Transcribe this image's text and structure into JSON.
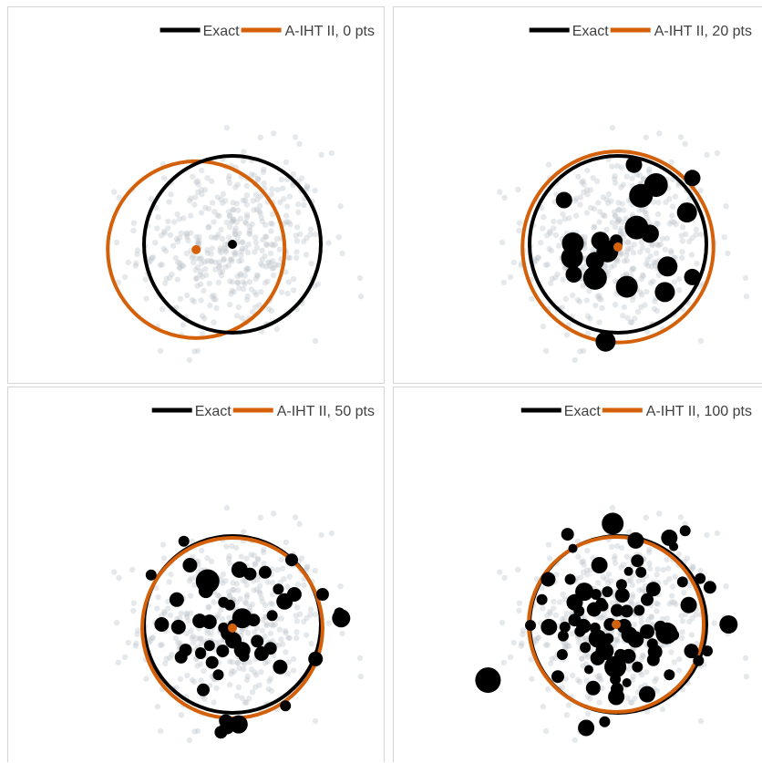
{
  "chart_data": [
    {
      "type": "scatter",
      "legend": [
        "Exact",
        "A-IHT II, 0 pts"
      ],
      "legend_position": "top-right",
      "colors": {
        "exact": "#000000",
        "approx": "#d4600a",
        "cloud": "#b8c0c6"
      },
      "exact_circle": {
        "center": [
          0.0,
          0.0
        ],
        "radius": 1.0
      },
      "approx_circle": {
        "center": [
          -0.41,
          -0.06
        ],
        "radius": 1.0
      },
      "weighted_points": []
    },
    {
      "type": "scatter",
      "legend": [
        "Exact",
        "A-IHT II, 20 pts"
      ],
      "legend_position": "top-right",
      "colors": {
        "exact": "#000000",
        "approx": "#d4600a",
        "cloud": "#b8c0c6"
      },
      "exact_circle": {
        "center": [
          0.0,
          0.0
        ],
        "radius": 1.0
      },
      "approx_circle": {
        "center": [
          0.0,
          -0.03
        ],
        "radius": 1.08
      },
      "weighted_points": [
        [
          0.18,
          0.9,
          9
        ],
        [
          0.84,
          0.75,
          9
        ],
        [
          0.43,
          0.67,
          13
        ],
        [
          0.26,
          0.55,
          13
        ],
        [
          -0.61,
          0.5,
          9
        ],
        [
          0.78,
          0.36,
          11
        ],
        [
          0.21,
          0.19,
          13
        ],
        [
          0.36,
          0.12,
          10
        ],
        [
          -0.51,
          0.01,
          12
        ],
        [
          -0.2,
          0.04,
          10
        ],
        [
          -0.02,
          0.04,
          7
        ],
        [
          -0.52,
          -0.15,
          12
        ],
        [
          -0.12,
          -0.08,
          12
        ],
        [
          -0.26,
          -0.19,
          10
        ],
        [
          0.56,
          -0.25,
          11
        ],
        [
          -0.5,
          -0.34,
          9
        ],
        [
          -0.26,
          -0.38,
          13
        ],
        [
          0.84,
          -0.37,
          9
        ],
        [
          0.1,
          -0.48,
          12
        ],
        [
          0.53,
          -0.54,
          11
        ],
        [
          -0.14,
          -1.1,
          11
        ]
      ]
    },
    {
      "type": "scatter",
      "legend": [
        "Exact",
        "A-IHT II, 50 pts"
      ],
      "legend_position": "top-right",
      "colors": {
        "exact": "#000000",
        "approx": "#d4600a",
        "cloud": "#b8c0c6"
      },
      "exact_circle": {
        "center": [
          0.0,
          0.0
        ],
        "radius": 1.0
      },
      "approx_circle": {
        "center": [
          0.0,
          -0.04
        ],
        "radius": 1.02
      },
      "weighted_points": [
        [
          -0.55,
          0.94,
          6
        ],
        [
          0.67,
          0.73,
          7
        ],
        [
          0.08,
          0.62,
          9
        ],
        [
          -0.48,
          0.67,
          8
        ],
        [
          0.2,
          0.57,
          7
        ],
        [
          -0.92,
          0.56,
          6
        ],
        [
          -0.28,
          0.49,
          13
        ],
        [
          0.37,
          0.59,
          7
        ],
        [
          0.7,
          0.34,
          8
        ],
        [
          -0.63,
          0.28,
          8
        ],
        [
          -0.3,
          0.38,
          8
        ],
        [
          -0.03,
          0.22,
          6
        ],
        [
          0.52,
          0.4,
          6
        ],
        [
          1.02,
          0.34,
          7
        ],
        [
          0.59,
          0.26,
          9
        ],
        [
          -0.1,
          0.25,
          6
        ],
        [
          0.11,
          0.07,
          11
        ],
        [
          -0.37,
          0.04,
          8
        ],
        [
          -0.8,
          0.0,
          8
        ],
        [
          -0.26,
          0.03,
          8
        ],
        [
          0.24,
          0.05,
          7
        ],
        [
          0.45,
          0.1,
          6
        ],
        [
          1.23,
          0.07,
          10
        ],
        [
          1.21,
          0.13,
          6
        ],
        [
          -0.61,
          -0.03,
          8
        ],
        [
          -0.1,
          -0.04,
          6
        ],
        [
          -0.05,
          -0.1,
          8
        ],
        [
          0.01,
          -0.18,
          9
        ],
        [
          -0.26,
          -0.24,
          6
        ],
        [
          -0.53,
          -0.29,
          7
        ],
        [
          0.11,
          -0.29,
          9
        ],
        [
          0.28,
          -0.19,
          7
        ],
        [
          -0.11,
          -0.3,
          7
        ],
        [
          -0.36,
          -0.32,
          6
        ],
        [
          -0.58,
          -0.37,
          7
        ],
        [
          0.43,
          -0.27,
          7
        ],
        [
          -0.36,
          -0.33,
          6
        ],
        [
          0.33,
          -0.33,
          8
        ],
        [
          0.13,
          -0.36,
          6
        ],
        [
          -0.23,
          -0.43,
          7
        ],
        [
          0.54,
          -0.48,
          8
        ],
        [
          0.94,
          -0.39,
          8
        ],
        [
          -0.16,
          -0.57,
          6
        ],
        [
          -0.33,
          -0.74,
          7
        ],
        [
          0.6,
          -0.92,
          6
        ],
        [
          -0.08,
          -1.09,
          7
        ],
        [
          -0.07,
          -1.09,
          7
        ],
        [
          0.02,
          -1.12,
          7
        ],
        [
          0.07,
          -1.13,
          10
        ],
        [
          -0.13,
          -1.22,
          7
        ],
        [
          -0.06,
          -1.16,
          8
        ]
      ]
    },
    {
      "type": "scatter",
      "legend": [
        "Exact",
        "A-IHT II, 100 pts"
      ],
      "legend_position": "top-right",
      "colors": {
        "exact": "#000000",
        "approx": "#d4600a",
        "cloud": "#b8c0c6"
      },
      "exact_circle": {
        "center": [
          0.0,
          0.0
        ],
        "radius": 1.0
      },
      "approx_circle": {
        "center": [
          -0.02,
          0.0
        ],
        "radius": 0.99
      },
      "weighted_points": [
        [
          -0.06,
          1.14,
          12
        ],
        [
          -0.57,
          1.02,
          7
        ],
        [
          0.58,
          0.98,
          9
        ],
        [
          0.76,
          1.06,
          6
        ],
        [
          0.2,
          0.95,
          9
        ],
        [
          -0.51,
          0.86,
          5
        ],
        [
          0.63,
          0.88,
          5
        ],
        [
          0.22,
          0.72,
          7
        ],
        [
          -0.21,
          0.67,
          9
        ],
        [
          0.12,
          0.6,
          5
        ],
        [
          0.26,
          0.59,
          6
        ],
        [
          -0.79,
          0.51,
          8
        ],
        [
          -0.54,
          0.51,
          6
        ],
        [
          0.73,
          0.48,
          6
        ],
        [
          0.93,
          0.52,
          6
        ],
        [
          -0.38,
          0.37,
          10
        ],
        [
          0.4,
          0.4,
          8
        ],
        [
          0.04,
          0.45,
          6
        ],
        [
          -0.25,
          0.34,
          6
        ],
        [
          0.05,
          0.33,
          8
        ],
        [
          -0.12,
          0.37,
          6
        ],
        [
          -0.86,
          0.28,
          6
        ],
        [
          1.04,
          0.42,
          7
        ],
        [
          0.33,
          0.28,
          7
        ],
        [
          -0.19,
          0.24,
          6
        ],
        [
          -0.49,
          0.25,
          9
        ],
        [
          0.8,
          0.22,
          9
        ],
        [
          -0.27,
          0.17,
          8
        ],
        [
          -0.01,
          0.16,
          7
        ],
        [
          0.1,
          0.15,
          7
        ],
        [
          -0.44,
          0.15,
          6
        ],
        [
          -0.17,
          0.21,
          6
        ],
        [
          0.24,
          0.16,
          6
        ],
        [
          -0.49,
          0.05,
          7
        ],
        [
          -0.78,
          -0.03,
          9
        ],
        [
          -0.39,
          -0.02,
          8
        ],
        [
          0.07,
          -0.02,
          8
        ],
        [
          -0.09,
          0.0,
          7
        ],
        [
          -0.26,
          -0.04,
          6
        ],
        [
          1.25,
          0.0,
          10
        ],
        [
          0.48,
          -0.03,
          7
        ],
        [
          -0.6,
          -0.03,
          6
        ],
        [
          -0.99,
          -0.01,
          6
        ],
        [
          0.33,
          -0.08,
          8
        ],
        [
          0.55,
          -0.1,
          12
        ],
        [
          0.13,
          -0.12,
          9
        ],
        [
          -0.23,
          -0.16,
          10
        ],
        [
          -0.43,
          -0.08,
          6
        ],
        [
          0.63,
          -0.12,
          6
        ],
        [
          -0.62,
          -0.13,
          6
        ],
        [
          -0.11,
          -0.16,
          6
        ],
        [
          0.2,
          -0.17,
          9
        ],
        [
          0.39,
          -0.22,
          6
        ],
        [
          -0.37,
          -0.26,
          6
        ],
        [
          0.83,
          -0.3,
          8
        ],
        [
          -0.15,
          -0.3,
          10
        ],
        [
          0.12,
          -0.36,
          8
        ],
        [
          0.42,
          -0.31,
          8
        ],
        [
          0.03,
          -0.35,
          7
        ],
        [
          -0.23,
          -0.38,
          8
        ],
        [
          -0.63,
          -0.34,
          6
        ],
        [
          1.01,
          -0.3,
          6
        ],
        [
          0.4,
          -0.4,
          7
        ],
        [
          -0.03,
          -0.48,
          12
        ],
        [
          0.22,
          -0.48,
          6
        ],
        [
          0.91,
          -0.41,
          6
        ],
        [
          -0.33,
          -0.51,
          5
        ],
        [
          0.58,
          -0.57,
          6
        ],
        [
          -0.68,
          -0.59,
          7
        ],
        [
          -0.03,
          -0.62,
          6
        ],
        [
          0.1,
          -0.66,
          5
        ],
        [
          -0.28,
          -0.72,
          8
        ],
        [
          -0.01,
          -0.73,
          7
        ],
        [
          0.33,
          -0.79,
          9
        ],
        [
          -0.02,
          -0.82,
          9
        ],
        [
          -1.47,
          -0.63,
          14
        ],
        [
          -0.36,
          -1.17,
          9
        ],
        [
          -0.15,
          -1.1,
          6
        ]
      ]
    }
  ]
}
